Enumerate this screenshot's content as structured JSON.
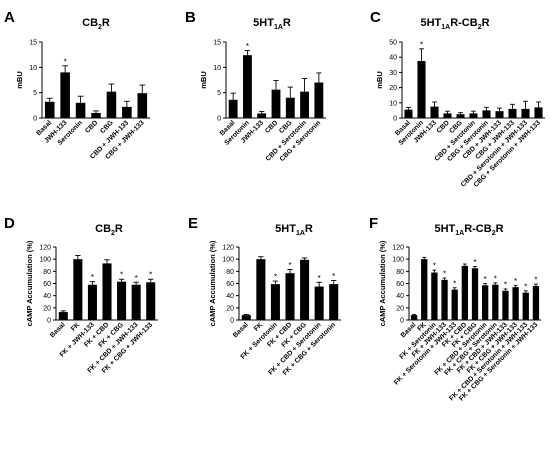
{
  "chart_data": [
    {
      "type": "bar",
      "panel_letter": "A",
      "title": "CB",
      "title_sub": "2",
      "title_tail": "R",
      "ylabel": "mBU",
      "ylim": [
        0,
        15
      ],
      "yticks": [
        0,
        5,
        10,
        15
      ],
      "categories": [
        "Basal",
        "JWH-133",
        "Serotonin",
        "CBD",
        "CBG",
        "CBD + JWH-133",
        "CBG + JWH-133"
      ],
      "values": [
        3.2,
        9.0,
        3.0,
        1.0,
        5.2,
        2.2,
        4.9
      ],
      "errors": [
        0.7,
        1.3,
        1.3,
        0.4,
        1.5,
        1.1,
        1.6
      ],
      "significance": [
        "",
        "*",
        "",
        "",
        "",
        "",
        ""
      ]
    },
    {
      "type": "bar",
      "panel_letter": "B",
      "title": "5HT",
      "title_sub": "1A",
      "title_tail": "R",
      "ylabel": "mBU",
      "ylim": [
        0,
        15
      ],
      "yticks": [
        0,
        5,
        10,
        15
      ],
      "categories": [
        "Basal",
        "Serotonin",
        "JWH-133",
        "CBD",
        "CBG",
        "CBD + Serotonin",
        "CBG + Serotonin"
      ],
      "values": [
        3.6,
        12.4,
        0.9,
        5.6,
        4.0,
        5.2,
        7.0
      ],
      "errors": [
        1.3,
        0.9,
        0.4,
        1.8,
        2.1,
        2.6,
        1.9
      ],
      "significance": [
        "",
        "*",
        "",
        "",
        "",
        "",
        ""
      ]
    },
    {
      "type": "bar",
      "panel_letter": "C",
      "title": "5HT",
      "title_sub": "1A",
      "title_tail": "R-CB",
      "title_sub2": "2",
      "title_tail2": "R",
      "ylabel": "mBU",
      "ylim": [
        0,
        50
      ],
      "yticks": [
        0,
        10,
        20,
        30,
        40,
        50
      ],
      "categories": [
        "Basal",
        "Serotonin",
        "JWH-133",
        "CBD",
        "CBG",
        "CBD + Serotonin",
        "CBG + Serotonin",
        "CBD + JWH-133",
        "CBG + JWH-133",
        "CBD + Serotonin + JWH-133",
        "CBG + Serotonin + JWH-133"
      ],
      "values": [
        5.5,
        37.5,
        7.5,
        3.0,
        2.5,
        3.0,
        5.0,
        4.5,
        6.0,
        6.0,
        7.0
      ],
      "errors": [
        1.5,
        8.0,
        3.0,
        1.5,
        1.0,
        1.5,
        2.0,
        2.0,
        3.0,
        5.0,
        3.5
      ],
      "significance": [
        "",
        "*",
        "",
        "",
        "",
        "",
        "",
        "",
        "",
        "",
        ""
      ]
    },
    {
      "type": "bar",
      "panel_letter": "D",
      "title": "CB",
      "title_sub": "2",
      "title_tail": "R",
      "ylabel": "cAMP Accumulation (%)",
      "ylim": [
        0,
        120
      ],
      "yticks": [
        0,
        20,
        40,
        60,
        80,
        100,
        120
      ],
      "categories": [
        "Basal",
        "FK",
        "FK + JWH-133",
        "FK + CBD",
        "FK + CBG",
        "FK + CBD + JWH-133",
        "FK + CBG + JWH-133"
      ],
      "values": [
        13,
        100,
        58,
        93,
        63,
        58,
        62
      ],
      "errors": [
        2,
        6,
        5,
        6,
        4,
        4,
        5
      ],
      "significance": [
        "",
        "",
        "*",
        "",
        "*",
        "*",
        "*"
      ]
    },
    {
      "type": "bar",
      "panel_letter": "E",
      "title": "5HT",
      "title_sub": "1A",
      "title_tail": "R",
      "ylabel": "cAMP Accumulation (%)",
      "ylim": [
        0,
        120
      ],
      "yticks": [
        0,
        20,
        40,
        60,
        80,
        100,
        120
      ],
      "categories": [
        "Basal",
        "FK",
        "FK + Serotonin",
        "FK + CBD",
        "FK + CBG",
        "FK + CBD + Serotonin",
        "FK + CBG + Serotonin"
      ],
      "values": [
        8,
        100,
        59,
        77,
        99,
        55,
        59
      ],
      "errors": [
        1,
        4,
        5,
        6,
        3,
        7,
        6
      ],
      "significance": [
        "",
        "",
        "*",
        "*",
        "",
        "*",
        "*"
      ]
    },
    {
      "type": "bar",
      "panel_letter": "F",
      "title": "5HT",
      "title_sub": "1A",
      "title_tail": "R-CB",
      "title_sub2": "2",
      "title_tail2": "R",
      "ylabel": "cAMP Accumulation (%)",
      "ylim": [
        0,
        120
      ],
      "yticks": [
        0,
        20,
        40,
        60,
        80,
        100,
        120
      ],
      "categories": [
        "Basal",
        "FK",
        "FK + Serotonin",
        "FK + JWH-133",
        "FK + Serotonin + JWH-133",
        "FK + CBD",
        "FK + CBG",
        "FK + CBD + Serotonin",
        "FK + CBG + Serotonin",
        "FK + CBD + JWH-133",
        "FK + CBG + JWH-133",
        "FK + CBD + Serotonin + JWH-133",
        "FK + CBG + Serotonin + JWH-133"
      ],
      "values": [
        8,
        100,
        78,
        66,
        50,
        89,
        85,
        57,
        58,
        48,
        54,
        45,
        56
      ],
      "errors": [
        1,
        3,
        4,
        3,
        3,
        3,
        3,
        3,
        3,
        3,
        3,
        3,
        3
      ],
      "significance": [
        "",
        "",
        "*",
        "*",
        "*",
        "",
        "*",
        "*",
        "*",
        "*",
        "*",
        "*",
        "*"
      ]
    }
  ]
}
